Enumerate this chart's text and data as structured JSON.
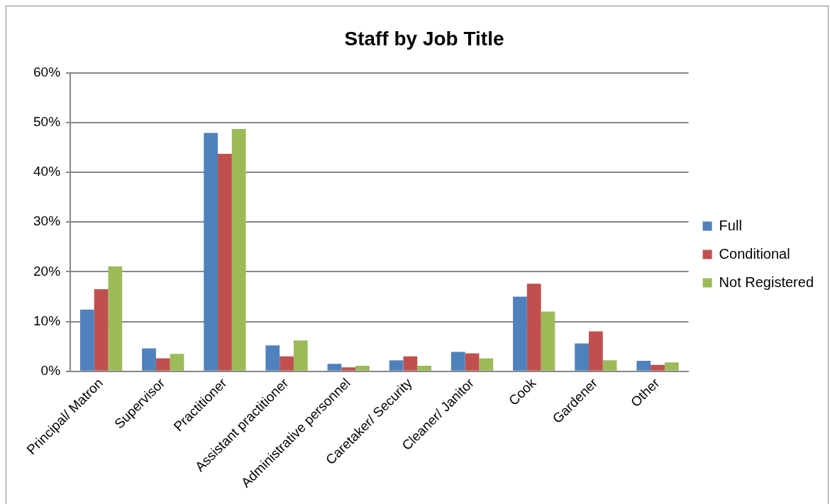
{
  "chart_data": {
    "type": "bar",
    "title": "Staff by Job Title",
    "categories": [
      "Principal/ Matron",
      "Supervisor",
      "Practitioner",
      "Assistant practitioner",
      "Administrative personnel",
      "Caretaker/ Security",
      "Cleaner/ Janitor",
      "Cook",
      "Gardener",
      "Other"
    ],
    "series": [
      {
        "name": "Full",
        "color": "#4f81bd",
        "values": [
          12.4,
          4.6,
          47.9,
          5.2,
          1.5,
          2.2,
          3.9,
          15.0,
          5.6,
          2.1
        ]
      },
      {
        "name": "Conditional",
        "color": "#c0504d",
        "values": [
          16.5,
          2.6,
          43.7,
          3.0,
          0.8,
          3.0,
          3.6,
          17.6,
          8.0,
          1.3
        ]
      },
      {
        "name": "Not Registered",
        "color": "#9bbb59",
        "values": [
          21.1,
          3.5,
          48.7,
          6.2,
          1.1,
          1.1,
          2.6,
          12.0,
          2.2,
          1.8
        ]
      }
    ],
    "ylim": [
      0,
      60
    ],
    "yticks": [
      {
        "value": 0,
        "label": "0%"
      },
      {
        "value": 10,
        "label": "10%"
      },
      {
        "value": 20,
        "label": "20%"
      },
      {
        "value": 30,
        "label": "30%"
      },
      {
        "value": 40,
        "label": "40%"
      },
      {
        "value": 50,
        "label": "50%"
      },
      {
        "value": 60,
        "label": "60%"
      }
    ],
    "grid": "y",
    "legend": "right"
  }
}
